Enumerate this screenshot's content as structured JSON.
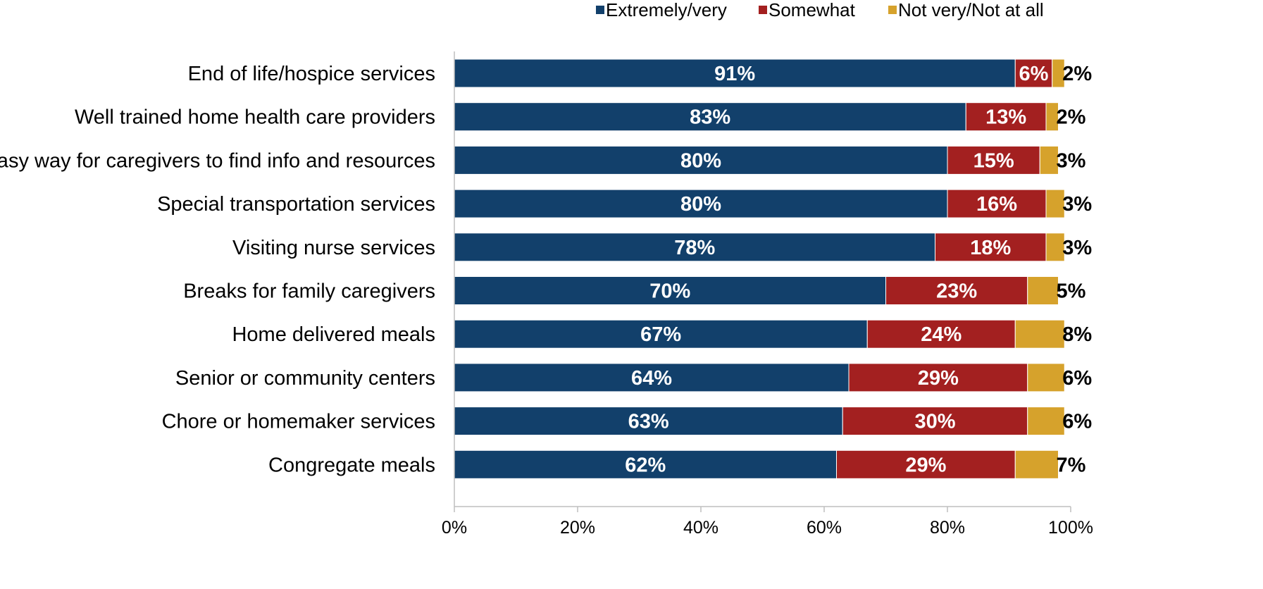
{
  "chart_data": {
    "type": "bar",
    "orientation": "horizontal",
    "stacked": true,
    "categories": [
      "End of life/hospice services",
      "Well trained home health care providers",
      "Easy way for caregivers to find info and resources",
      "Special transportation services",
      "Visiting nurse services",
      "Breaks for family caregivers",
      "Home delivered meals",
      "Senior or community centers",
      "Chore or homemaker services",
      "Congregate meals"
    ],
    "series": [
      {
        "name": "Extremely/very",
        "color": "#12406b",
        "values": [
          91,
          83,
          80,
          80,
          78,
          70,
          67,
          64,
          63,
          62
        ],
        "labels": [
          "91%",
          "83%",
          "80%",
          "80%",
          "78%",
          "70%",
          "67%",
          "64%",
          "63%",
          "62%"
        ]
      },
      {
        "name": "Somewhat",
        "color": "#a32020",
        "values": [
          6,
          13,
          15,
          16,
          18,
          23,
          24,
          29,
          30,
          29
        ],
        "labels": [
          "6%",
          "13%",
          "15%",
          "16%",
          "18%",
          "23%",
          "24%",
          "29%",
          "30%",
          "29%"
        ]
      },
      {
        "name": "Not very/Not at all",
        "color": "#d6a22c",
        "values": [
          2,
          2,
          3,
          3,
          3,
          5,
          8,
          6,
          6,
          7
        ],
        "labels": [
          "2%",
          "2%",
          "3%",
          "3%",
          "3%",
          "5%",
          "8%",
          "6%",
          "6%",
          "7%"
        ]
      }
    ],
    "xlim": [
      0,
      100
    ],
    "xticks": [
      "0%",
      "20%",
      "40%",
      "60%",
      "80%",
      "100%"
    ],
    "grid": false,
    "legend": "top-right",
    "title": "",
    "xlabel": "",
    "ylabel": ""
  }
}
